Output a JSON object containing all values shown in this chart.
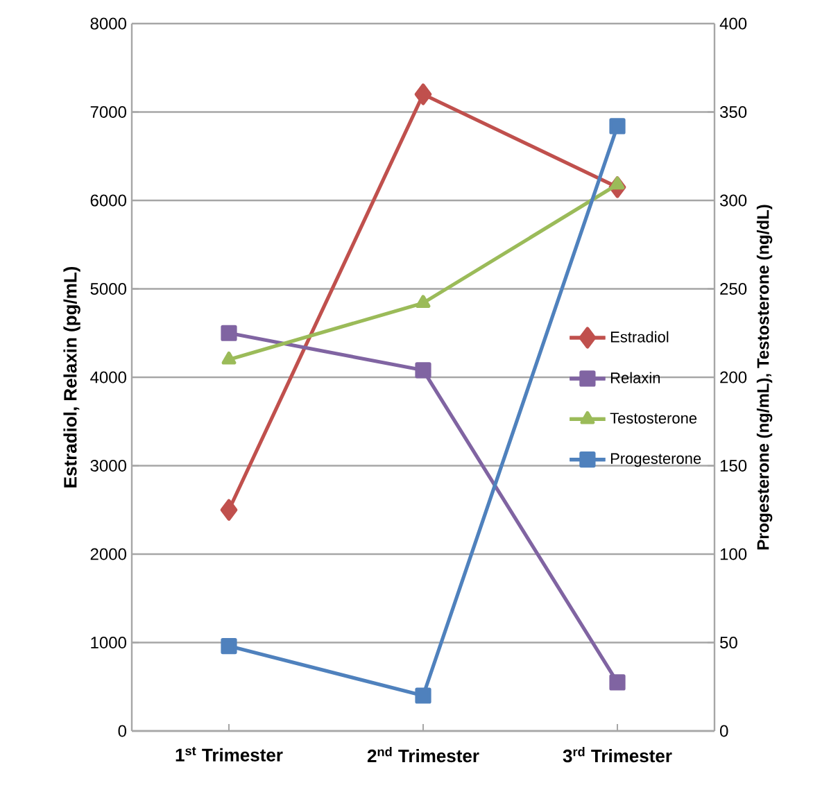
{
  "chart_data": {
    "type": "line",
    "categories": [
      "1$^{st}$ Trimester",
      "2$^{nd}$ Trimester",
      "3$^{rd}$ Trimester"
    ],
    "ylabel": "Estradiol, Relaxin (pg/mL)",
    "y2label": "Progesterone (ng/mL), Testosterone (ng/dL)",
    "ylim": [
      0,
      8000
    ],
    "yticks": [
      0,
      1000,
      2000,
      3000,
      4000,
      5000,
      6000,
      7000,
      8000
    ],
    "y2lim": [
      0,
      400
    ],
    "y2ticks": [
      0,
      50,
      100,
      150,
      200,
      250,
      300,
      350,
      400
    ],
    "grid": "y",
    "legend": "right",
    "series": [
      {
        "name": "Estradiol",
        "color": "#c0504d",
        "marker": "diamond",
        "values": [
          2500,
          7200,
          6150
        ]
      },
      {
        "name": "Relaxin",
        "color": "#8064a2",
        "marker": "square",
        "values": [
          4500,
          4080,
          550
        ]
      },
      {
        "name": "Testosterone",
        "color": "#9bbb59",
        "marker": "triangle",
        "axis": "y2",
        "values": [
          210,
          242,
          309
        ]
      },
      {
        "name": "Progesterone",
        "color": "#4f81bd",
        "marker": "square",
        "axis": "y2",
        "values": [
          48,
          20,
          342
        ]
      }
    ]
  }
}
